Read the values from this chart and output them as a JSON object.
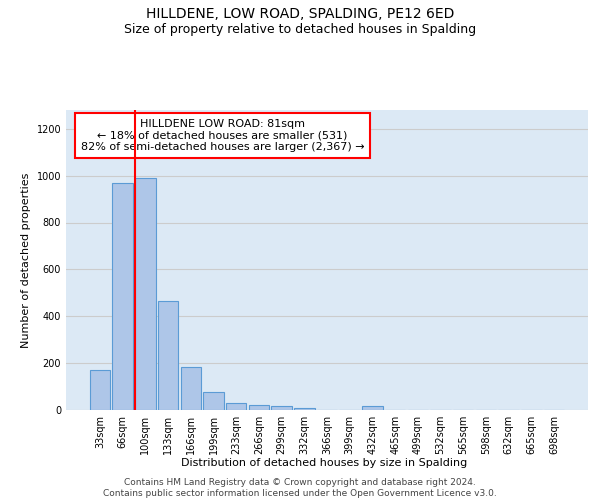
{
  "title": "HILLDENE, LOW ROAD, SPALDING, PE12 6ED",
  "subtitle": "Size of property relative to detached houses in Spalding",
  "xlabel": "Distribution of detached houses by size in Spalding",
  "ylabel": "Number of detached properties",
  "categories": [
    "33sqm",
    "66sqm",
    "100sqm",
    "133sqm",
    "166sqm",
    "199sqm",
    "233sqm",
    "266sqm",
    "299sqm",
    "332sqm",
    "366sqm",
    "399sqm",
    "432sqm",
    "465sqm",
    "499sqm",
    "532sqm",
    "565sqm",
    "598sqm",
    "632sqm",
    "665sqm",
    "698sqm"
  ],
  "values": [
    170,
    970,
    990,
    465,
    185,
    75,
    30,
    22,
    18,
    10,
    0,
    0,
    16,
    0,
    0,
    0,
    0,
    0,
    0,
    0,
    0
  ],
  "bar_color": "#aec6e8",
  "bar_edge_color": "#5b9bd5",
  "bar_edge_width": 0.8,
  "vline_color": "red",
  "vline_linewidth": 1.5,
  "annotation_text": "HILLDENE LOW ROAD: 81sqm\n← 18% of detached houses are smaller (531)\n82% of semi-detached houses are larger (2,367) →",
  "annotation_box_color": "white",
  "annotation_box_edgecolor": "red",
  "ylim": [
    0,
    1280
  ],
  "yticks": [
    0,
    200,
    400,
    600,
    800,
    1000,
    1200
  ],
  "grid_color": "#cccccc",
  "bg_color": "#dce9f5",
  "footer": "Contains HM Land Registry data © Crown copyright and database right 2024.\nContains public sector information licensed under the Open Government Licence v3.0.",
  "title_fontsize": 10,
  "subtitle_fontsize": 9,
  "xlabel_fontsize": 8,
  "ylabel_fontsize": 8,
  "tick_fontsize": 7,
  "annotation_fontsize": 8,
  "footer_fontsize": 6.5
}
